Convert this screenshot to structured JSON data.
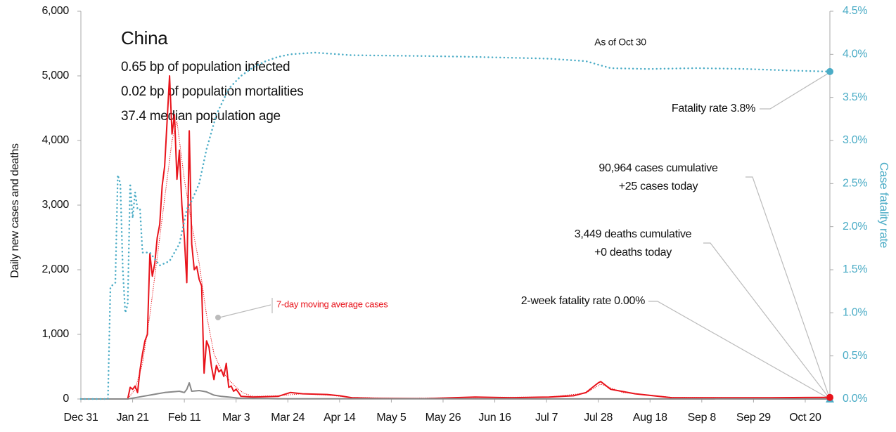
{
  "chart_data": {
    "type": "line",
    "title": "China",
    "subtitle_lines": [
      "0.65 bp of population infected",
      "0.02 bp of population mortalities",
      "37.4 median population age"
    ],
    "ylabel": "Daily new cases and deaths",
    "y2label": "Case fatality rate",
    "annotations": {
      "as_of": "As of Oct 30",
      "fatality": "Fatality rate 3.8%",
      "cases_cum": "90,964 cases cumulative",
      "cases_today": "+25 cases today",
      "deaths_cum": "3,449 deaths cumulative",
      "deaths_today": "+0 deaths today",
      "two_week": "2-week fatality rate 0.00%"
    },
    "xlim": [
      0,
      304
    ],
    "xticks": [
      {
        "value": 0,
        "label": "Dec 31"
      },
      {
        "value": 21,
        "label": "Jan 21"
      },
      {
        "value": 42,
        "label": "Feb 11"
      },
      {
        "value": 63,
        "label": "Mar 3"
      },
      {
        "value": 84,
        "label": "Mar 24"
      },
      {
        "value": 105,
        "label": "Apr 14"
      },
      {
        "value": 126,
        "label": "May 5"
      },
      {
        "value": 147,
        "label": "May 26"
      },
      {
        "value": 168,
        "label": "Jun 16"
      },
      {
        "value": 189,
        "label": "Jul 7"
      },
      {
        "value": 210,
        "label": "Jul 28"
      },
      {
        "value": 231,
        "label": "Aug 18"
      },
      {
        "value": 252,
        "label": "Sep 8"
      },
      {
        "value": 273,
        "label": "Sep 29"
      },
      {
        "value": 294,
        "label": "Oct 20"
      }
    ],
    "ylim": [
      0,
      6000
    ],
    "yticks": [
      0,
      {
        "value": 1000,
        "label": "1,000"
      },
      {
        "value": 2000,
        "label": "2,000"
      },
      {
        "value": 3000,
        "label": "3,000"
      },
      {
        "value": 4000,
        "label": "4,000"
      },
      {
        "value": 5000,
        "label": "5,000"
      },
      {
        "value": 6000,
        "label": "6,000"
      }
    ],
    "y2lim": [
      0,
      4.5
    ],
    "y2ticks": [
      {
        "value": 0,
        "label": "0.0%"
      },
      {
        "value": 0.5,
        "label": "0.5%"
      },
      {
        "value": 1,
        "label": "1.0%"
      },
      {
        "value": 1.5,
        "label": "1.5%"
      },
      {
        "value": 2,
        "label": "2.0%"
      },
      {
        "value": 2.5,
        "label": "2.5%"
      },
      {
        "value": 3,
        "label": "3.0%"
      },
      {
        "value": 3.5,
        "label": "3.5%"
      },
      {
        "value": 4,
        "label": "4.0%"
      },
      {
        "value": 4.5,
        "label": "4.5%"
      }
    ],
    "series": [
      {
        "color": "#e8131b",
        "style": "solid",
        "width": 2,
        "x": [
          0,
          19,
          20,
          21,
          22,
          23,
          24,
          25,
          26,
          27,
          28,
          29,
          30,
          31,
          32,
          33,
          34,
          35,
          36,
          37,
          38,
          39,
          40,
          41,
          42,
          43,
          44,
          45,
          46,
          47,
          48,
          49,
          50,
          51,
          52,
          53,
          54,
          55,
          56,
          57,
          58,
          59,
          60,
          61,
          62,
          63,
          64,
          65,
          70,
          80,
          85,
          90,
          100,
          105,
          110,
          120,
          140,
          160,
          175,
          190,
          200,
          205,
          210,
          211,
          215,
          225,
          240,
          260,
          280,
          304
        ],
        "values": [
          0,
          0,
          180,
          150,
          200,
          100,
          450,
          700,
          900,
          1000,
          2250,
          1900,
          2100,
          2500,
          2700,
          3300,
          3600,
          4300,
          5000,
          4100,
          4400,
          3400,
          3850,
          3000,
          2500,
          1800,
          4150,
          2400,
          2000,
          2050,
          1850,
          1750,
          400,
          900,
          800,
          500,
          300,
          520,
          420,
          450,
          350,
          550,
          180,
          200,
          120,
          150,
          100,
          40,
          30,
          40,
          100,
          80,
          70,
          50,
          20,
          10,
          5,
          30,
          20,
          30,
          50,
          100,
          250,
          270,
          150,
          80,
          20,
          20,
          20,
          25
        ]
      },
      {
        "name": "7-day moving average cases",
        "color": "#e8131b",
        "style": "dotted",
        "width": 1.2,
        "x": [
          0,
          19,
          22,
          25,
          28,
          31,
          34,
          37,
          39,
          42,
          45,
          48,
          51,
          54,
          57,
          60,
          63,
          66,
          70,
          80,
          90,
          100,
          110,
          130,
          160,
          190,
          205,
          211,
          220,
          240,
          270,
          304
        ],
        "values": [
          0,
          0,
          150,
          550,
          1300,
          2200,
          3100,
          4000,
          4300,
          3400,
          2700,
          2100,
          1300,
          700,
          450,
          300,
          180,
          90,
          40,
          50,
          80,
          60,
          25,
          8,
          25,
          30,
          90,
          230,
          100,
          25,
          20,
          22
        ]
      },
      {
        "color": "#888888",
        "style": "solid",
        "width": 2,
        "x": [
          0,
          19,
          22,
          25,
          28,
          31,
          34,
          37,
          40,
          42,
          43,
          44,
          45,
          48,
          51,
          54,
          57,
          60,
          65,
          80,
          304
        ],
        "values": [
          0,
          0,
          20,
          40,
          60,
          80,
          100,
          110,
          120,
          100,
          150,
          250,
          120,
          130,
          110,
          60,
          40,
          30,
          10,
          3,
          0
        ]
      },
      {
        "color": "#4bacc6",
        "style": "dotted",
        "width": 2.5,
        "axis": "y2",
        "x": [
          0,
          11,
          12,
          14,
          15,
          16,
          17,
          18,
          19,
          20,
          21,
          22,
          23,
          24,
          25,
          28,
          32,
          36,
          40,
          43,
          45,
          48,
          51,
          55,
          60,
          65,
          70,
          75,
          80,
          85,
          95,
          110,
          140,
          160,
          190,
          205,
          210,
          215,
          230,
          250,
          270,
          290,
          304
        ],
        "values": [
          0,
          0,
          1.3,
          1.35,
          2.6,
          2.5,
          1.5,
          1.0,
          1.1,
          2.5,
          2.1,
          2.4,
          2.2,
          2.2,
          1.7,
          1.7,
          1.55,
          1.6,
          1.8,
          2.2,
          2.3,
          2.5,
          2.9,
          3.3,
          3.6,
          3.75,
          3.85,
          3.92,
          3.97,
          4.0,
          4.02,
          3.99,
          3.98,
          3.97,
          3.95,
          3.92,
          3.88,
          3.84,
          3.83,
          3.84,
          3.83,
          3.81,
          3.8
        ]
      }
    ]
  }
}
